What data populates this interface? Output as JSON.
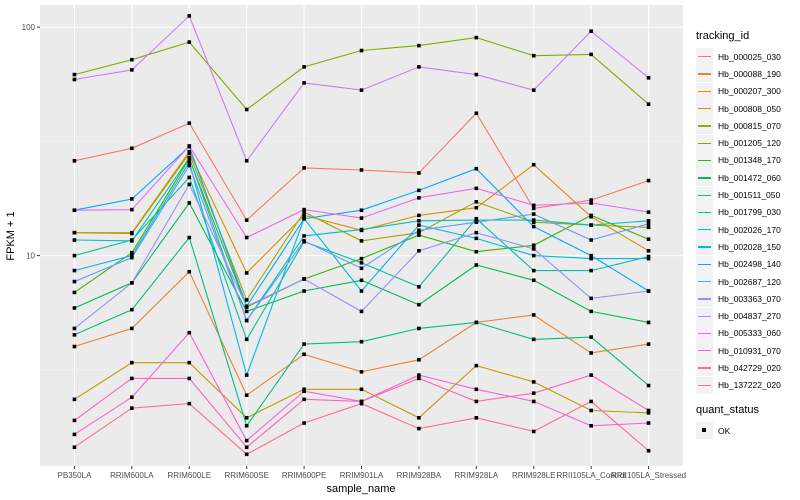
{
  "chart_data": {
    "type": "line",
    "title": "",
    "xlabel": "sample_name",
    "ylabel": "FPKM + 1",
    "yscale": "log10",
    "ylim": [
      1.2,
      125
    ],
    "yticks": [
      {
        "value": 10,
        "label": "10"
      },
      {
        "value": 100,
        "label": "100"
      }
    ],
    "grid": true,
    "legend_position": "right",
    "categories": [
      "PB350LA",
      "RRIM600LA",
      "RRIM600LE",
      "RRIM600SE",
      "RRIM600PE",
      "RRIM901LA",
      "RRIM928BA",
      "RRIM928LA",
      "RRIM928LE",
      "RRII105LA_Control",
      "RRII105LA_Stressed"
    ],
    "legend_title": "tracking_id",
    "shape_legend_title": "quant_status",
    "shape_legend_items": [
      "OK"
    ],
    "series": [
      {
        "name": "Hb_000025_030",
        "color": "#F8766D",
        "values": [
          26,
          29.5,
          38,
          14.3,
          24.2,
          23.7,
          23.0,
          42,
          16.1,
          17.5,
          21.3
        ]
      },
      {
        "name": "Hb_000088_190",
        "color": "#EA8331",
        "values": [
          4.0,
          4.8,
          8.5,
          2.45,
          3.7,
          3.1,
          3.5,
          5.1,
          5.5,
          3.75,
          4.1
        ]
      },
      {
        "name": "Hb_000207_300",
        "color": "#D89000",
        "values": [
          12.6,
          12.6,
          28.5,
          8.4,
          15.0,
          12.9,
          15.0,
          16.2,
          25.0,
          14.8,
          10.5
        ]
      },
      {
        "name": "Hb_000808_050",
        "color": "#C09B00",
        "values": [
          2.35,
          3.4,
          3.4,
          1.95,
          2.6,
          2.6,
          1.95,
          3.3,
          2.8,
          2.1,
          2.05
        ]
      },
      {
        "name": "Hb_000815_070",
        "color": "#A3A500",
        "values": [
          12.6,
          12.5,
          28.0,
          6.4,
          15.5,
          11.6,
          12.6,
          17.2,
          14.0,
          13.6,
          13.3
        ]
      },
      {
        "name": "Hb_001205_120",
        "color": "#7CAE00",
        "values": [
          62,
          72,
          86,
          43.6,
          67,
          79,
          83,
          90,
          75,
          76,
          46
        ]
      },
      {
        "name": "Hb_001348_170",
        "color": "#39B600",
        "values": [
          6.9,
          10.3,
          26.6,
          5.95,
          7.9,
          9.7,
          12.3,
          10.4,
          11.1,
          15.0,
          11.8
        ]
      },
      {
        "name": "Hb_001472_060",
        "color": "#00BB4E",
        "values": [
          5.9,
          7.6,
          17.0,
          5.7,
          7.0,
          7.8,
          6.1,
          9.1,
          7.8,
          5.7,
          5.1
        ]
      },
      {
        "name": "Hb_001511_050",
        "color": "#00BF7D",
        "values": [
          4.5,
          5.8,
          12.0,
          1.8,
          4.1,
          4.2,
          4.8,
          5.1,
          4.3,
          4.4,
          2.7
        ]
      },
      {
        "name": "Hb_001799_030",
        "color": "#00C1A3",
        "values": [
          10.0,
          11.7,
          22.0,
          4.3,
          11.5,
          9.3,
          7.3,
          14.5,
          8.6,
          8.6,
          9.9
        ]
      },
      {
        "name": "Hb_002026_170",
        "color": "#00BFC4",
        "values": [
          11.7,
          11.6,
          26.8,
          5.2,
          12.2,
          13.0,
          14.2,
          14.3,
          14.3,
          13.6,
          14.2
        ]
      },
      {
        "name": "Hb_002028_150",
        "color": "#00B8E7",
        "values": [
          8.6,
          10.0,
          25.7,
          3.0,
          14.5,
          7.0,
          13.6,
          11.9,
          10.0,
          9.7,
          9.7
        ]
      },
      {
        "name": "Hb_002498_140",
        "color": "#00A9FF",
        "values": [
          15.8,
          17.7,
          30.0,
          6.0,
          14.5,
          15.8,
          19.3,
          24.0,
          13.4,
          10.0,
          7.0
        ]
      },
      {
        "name": "Hb_002687_120",
        "color": "#619CFF",
        "values": [
          7.7,
          9.8,
          24.8,
          5.2,
          11.6,
          8.8,
          12.9,
          14.0,
          15.2,
          11.7,
          13.8
        ]
      },
      {
        "name": "Hb_003363_070",
        "color": "#9590FF",
        "values": [
          4.8,
          7.6,
          20.5,
          6.0,
          7.9,
          5.7,
          10.5,
          12.6,
          10.7,
          6.5,
          7.0
        ]
      },
      {
        "name": "Hb_004837_270",
        "color": "#C77CFF",
        "values": [
          59,
          65,
          112,
          26,
          57,
          53,
          67,
          62,
          53,
          96,
          60
        ]
      },
      {
        "name": "Hb_005333_060",
        "color": "#E76BF3",
        "values": [
          15.8,
          15.9,
          30.2,
          12.0,
          15.9,
          14.6,
          17.9,
          19.7,
          16.6,
          17.0,
          15.5
        ]
      },
      {
        "name": "Hb_010931_070",
        "color": "#FA62DB",
        "values": [
          1.65,
          2.4,
          4.6,
          1.55,
          2.55,
          2.3,
          3.0,
          2.6,
          2.3,
          1.8,
          1.85
        ]
      },
      {
        "name": "Hb_042729_020",
        "color": "#FF62BC",
        "values": [
          1.9,
          2.9,
          2.9,
          1.45,
          2.35,
          2.3,
          2.9,
          2.3,
          2.5,
          3.0,
          2.1
        ]
      },
      {
        "name": "Hb_137222_020",
        "color": "#FF6C91",
        "values": [
          1.45,
          2.15,
          2.25,
          1.35,
          1.85,
          2.25,
          1.75,
          1.95,
          1.7,
          2.3,
          1.4
        ]
      }
    ]
  },
  "colors": {
    "panel_background": "#EBEBEB",
    "grid": "#FFFFFF",
    "point": "#000000"
  }
}
